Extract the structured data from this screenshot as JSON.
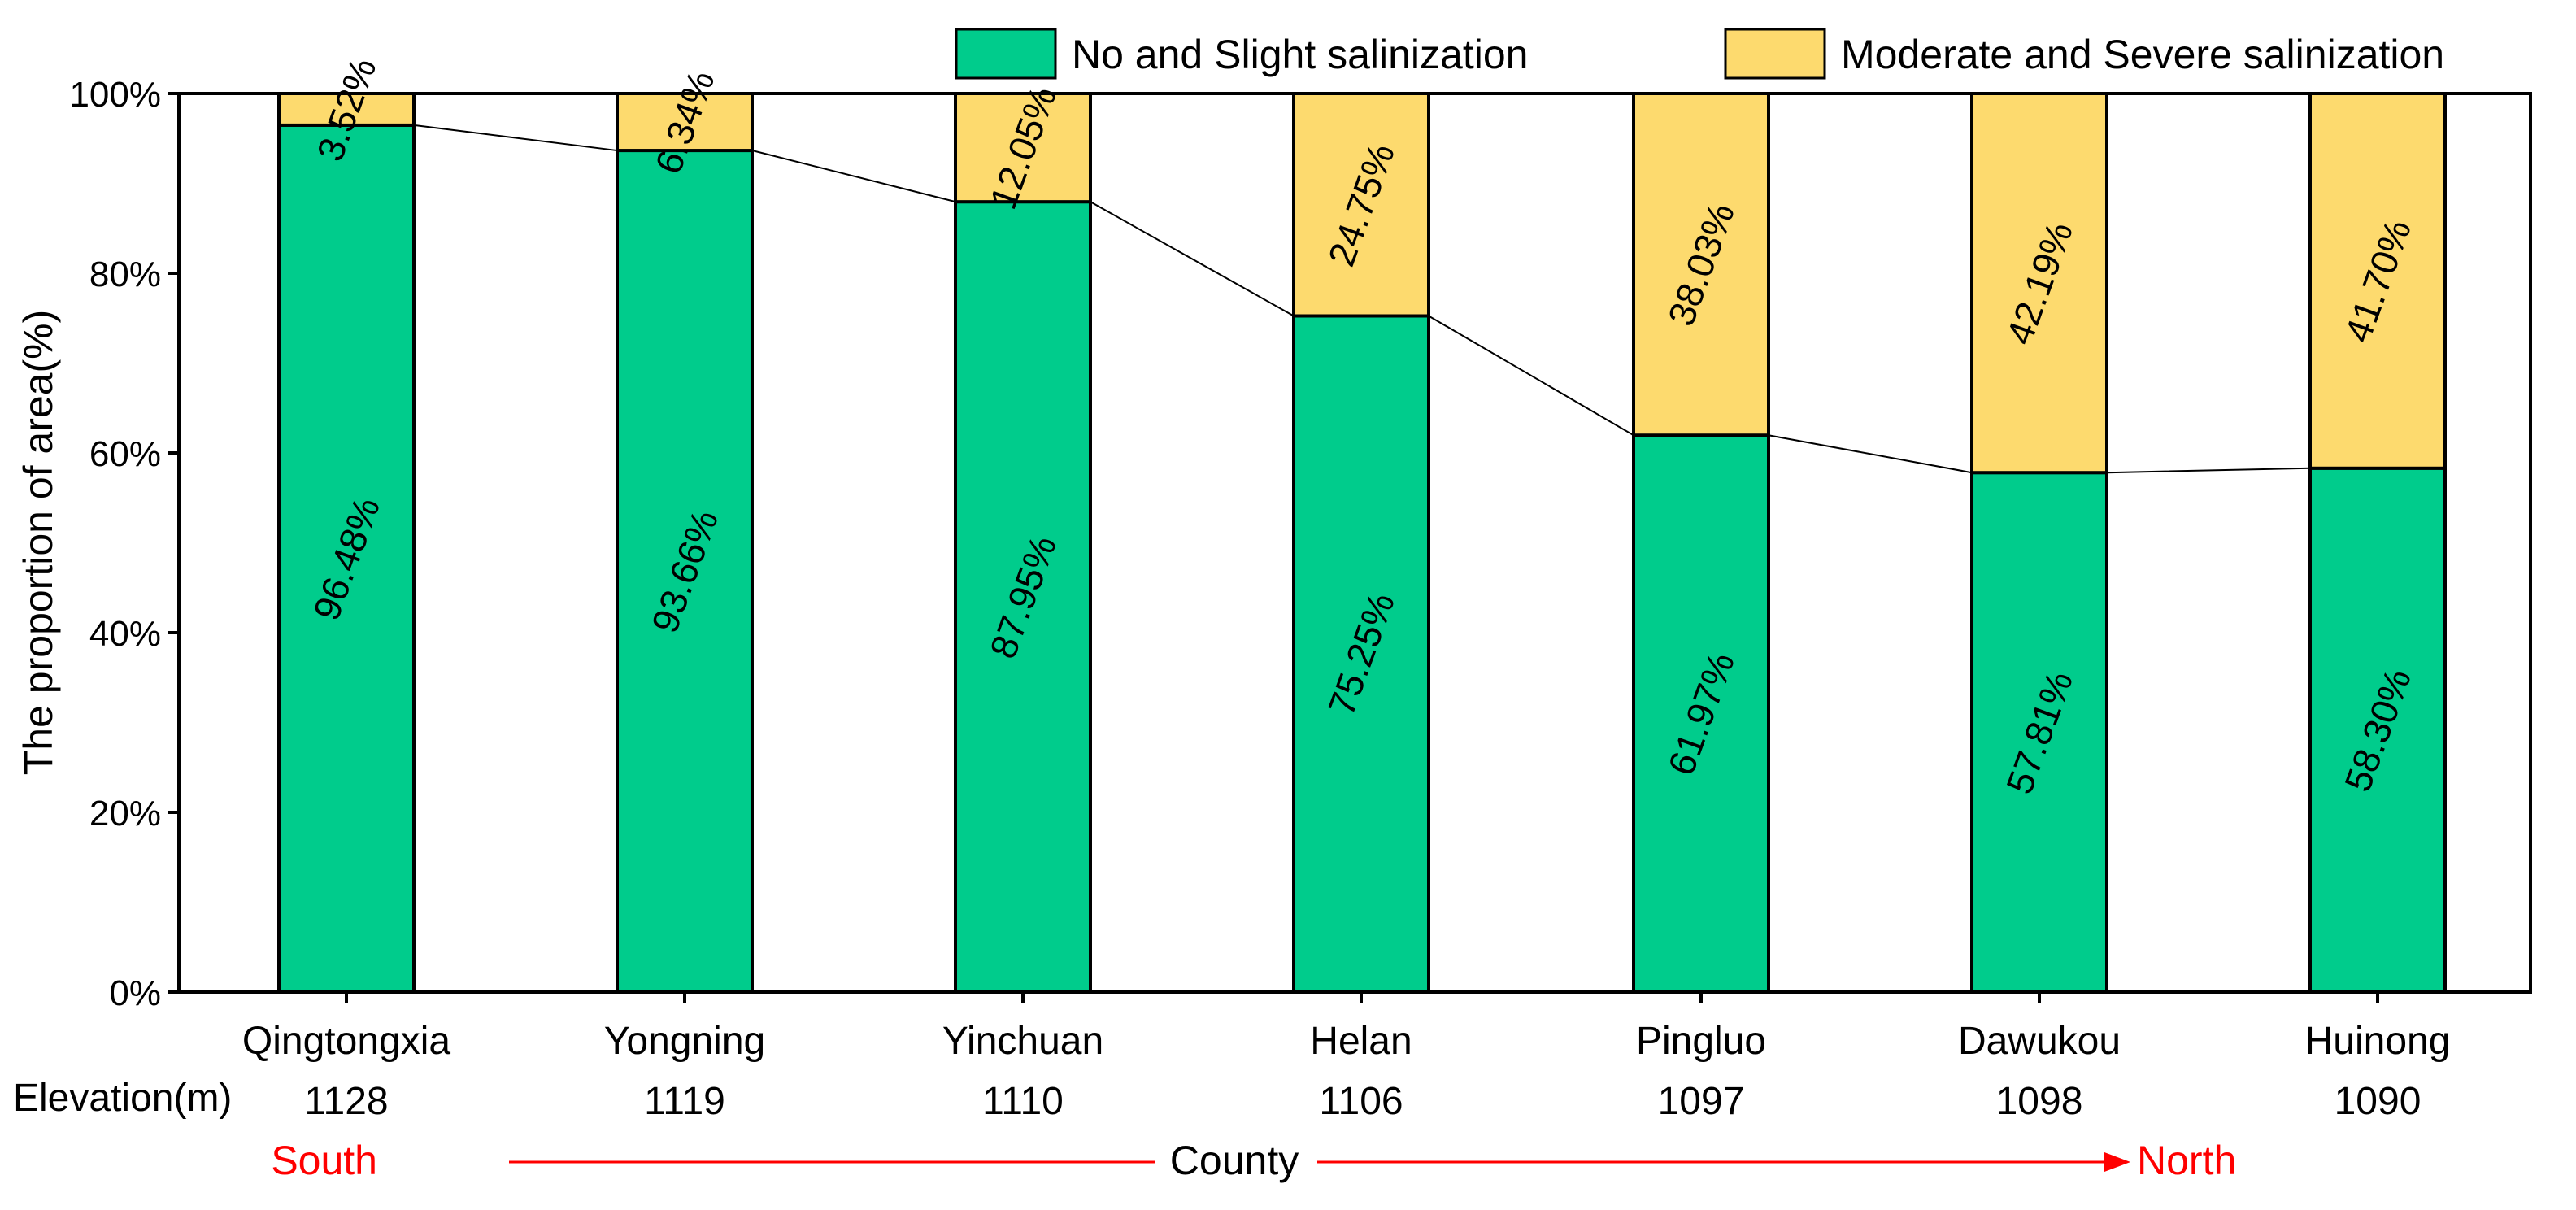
{
  "chart_data": {
    "type": "bar",
    "stacked": true,
    "categories": [
      "Qingtongxia",
      "Yongning",
      "Yinchuan",
      "Helan",
      "Pingluo",
      "Dawukou",
      "Huinong"
    ],
    "elevation_label": "Elevation(m)",
    "elevations": [
      "1128",
      "1119",
      "1110",
      "1106",
      "1097",
      "1098",
      "1090"
    ],
    "series": [
      {
        "name": "No and Slight salinization",
        "color": "#00CC8C",
        "values": [
          96.48,
          93.66,
          87.95,
          75.25,
          61.97,
          57.81,
          58.3
        ],
        "labels": [
          "96.48%",
          "93.66%",
          "87.95%",
          "75.25%",
          "61.97%",
          "57.81%",
          "58.30%"
        ]
      },
      {
        "name": "Moderate and Severe salinization",
        "color": "#FDDA6E",
        "values": [
          3.52,
          6.34,
          12.05,
          24.75,
          38.03,
          42.19,
          41.7
        ],
        "labels": [
          "3.52%",
          "6.34%",
          "12.05%",
          "24.75%",
          "38.03%",
          "42.19%",
          "41.70%"
        ]
      }
    ],
    "ylabel": "The proportion of area(%)",
    "ylim": [
      0,
      100
    ],
    "yticks": [
      0,
      20,
      40,
      60,
      80,
      100
    ],
    "ytick_labels": [
      "0%",
      "20%",
      "40%",
      "60%",
      "80%",
      "100%"
    ],
    "xlabel": "County",
    "direction": {
      "start": "South",
      "end": "North",
      "color": "#FF0000"
    },
    "connector_line": true,
    "legend_position": "top-right",
    "grid": false
  }
}
